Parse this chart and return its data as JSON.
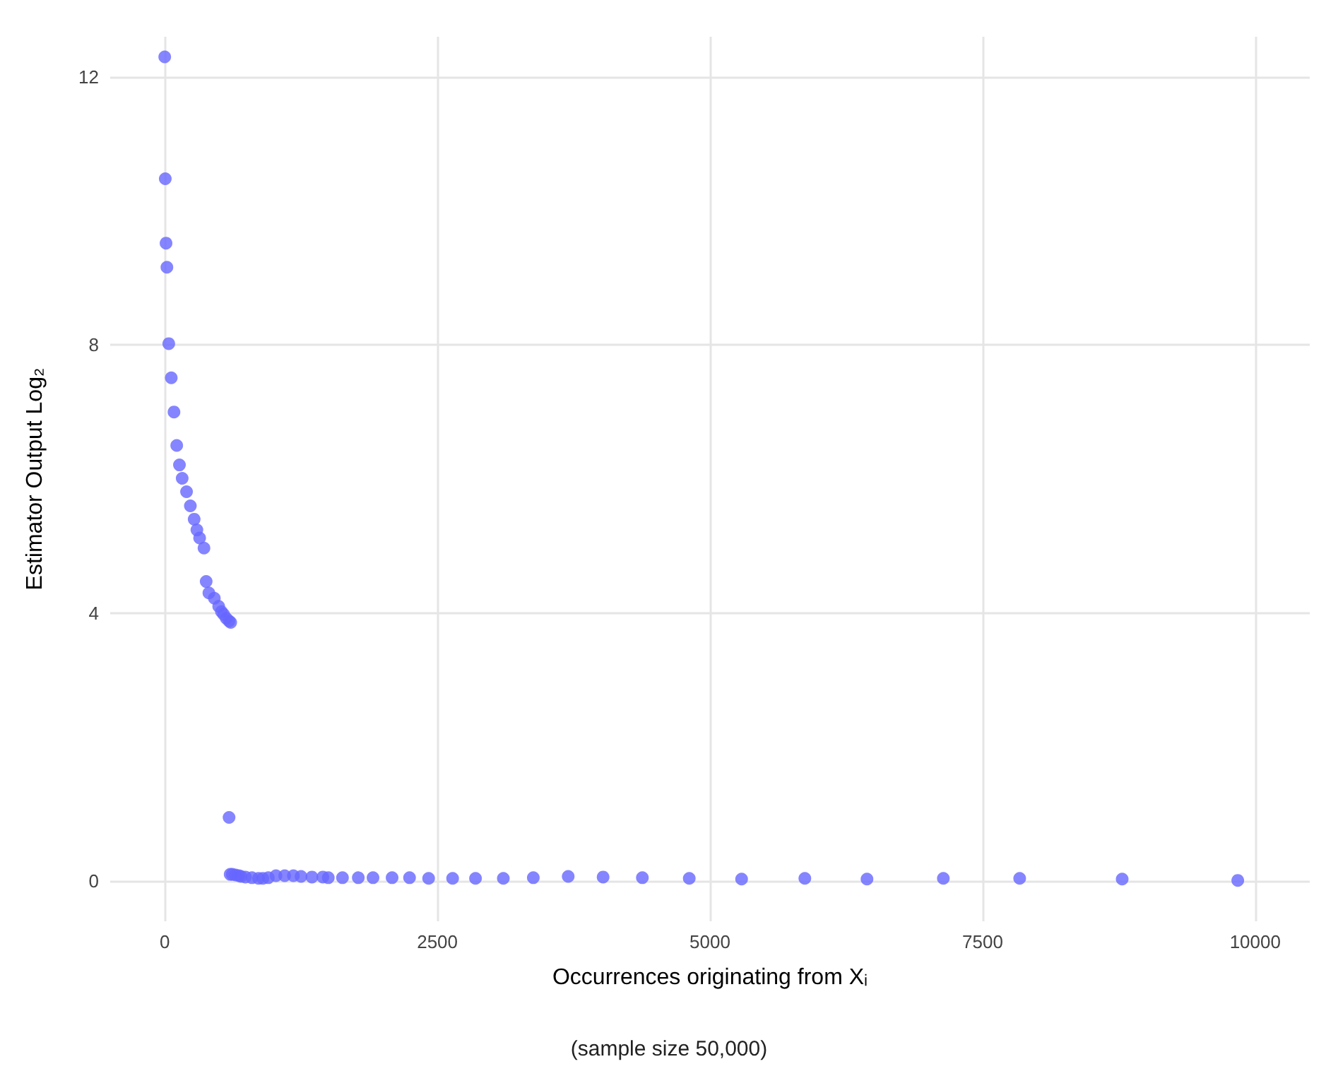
{
  "chart_data": {
    "type": "scatter",
    "xlabel": "Occurrences originating from Xᵢ",
    "ylabel": "Estimator Output Log₂",
    "annotations": [
      "(sample size 50,000)"
    ],
    "x": [
      0,
      5,
      12,
      20,
      37,
      60,
      85,
      110,
      135,
      160,
      200,
      235,
      270,
      295,
      320,
      360,
      380,
      405,
      455,
      495,
      520,
      540,
      565,
      590,
      605,
      590,
      600,
      620,
      650,
      680,
      700,
      740,
      800,
      860,
      900,
      950,
      1020,
      1100,
      1180,
      1250,
      1350,
      1450,
      1500,
      1630,
      1775,
      1910,
      2085,
      2245,
      2420,
      2640,
      2850,
      3105,
      3380,
      3700,
      4020,
      4380,
      4810,
      5290,
      5870,
      6440,
      7140,
      7840,
      8780,
      9840
    ],
    "series": [
      {
        "color": "#6666ff",
        "values": [
          12.3,
          10.48,
          9.52,
          9.16,
          8.02,
          7.51,
          7.0,
          6.5,
          6.21,
          6.01,
          5.81,
          5.6,
          5.4,
          5.24,
          5.12,
          4.97,
          4.47,
          4.3,
          4.22,
          4.1,
          4.02,
          3.98,
          3.92,
          3.88,
          3.86,
          0.95,
          0.1,
          0.1,
          0.09,
          0.08,
          0.07,
          0.06,
          0.05,
          0.04,
          0.04,
          0.05,
          0.08,
          0.08,
          0.08,
          0.07,
          0.06,
          0.06,
          0.05,
          0.05,
          0.05,
          0.05,
          0.05,
          0.05,
          0.04,
          0.04,
          0.04,
          0.04,
          0.05,
          0.07,
          0.06,
          0.05,
          0.04,
          0.03,
          0.04,
          0.03,
          0.04,
          0.04,
          0.03,
          0.01
        ]
      }
    ],
    "xlim": [
      -500,
      10500
    ],
    "xticks": [
      0,
      2500,
      5000,
      7500,
      10000
    ],
    "ylim": [
      -0.6,
      12.6
    ],
    "yticks": [
      0,
      4,
      8,
      12
    ],
    "grid": true,
    "marker": "circle"
  }
}
